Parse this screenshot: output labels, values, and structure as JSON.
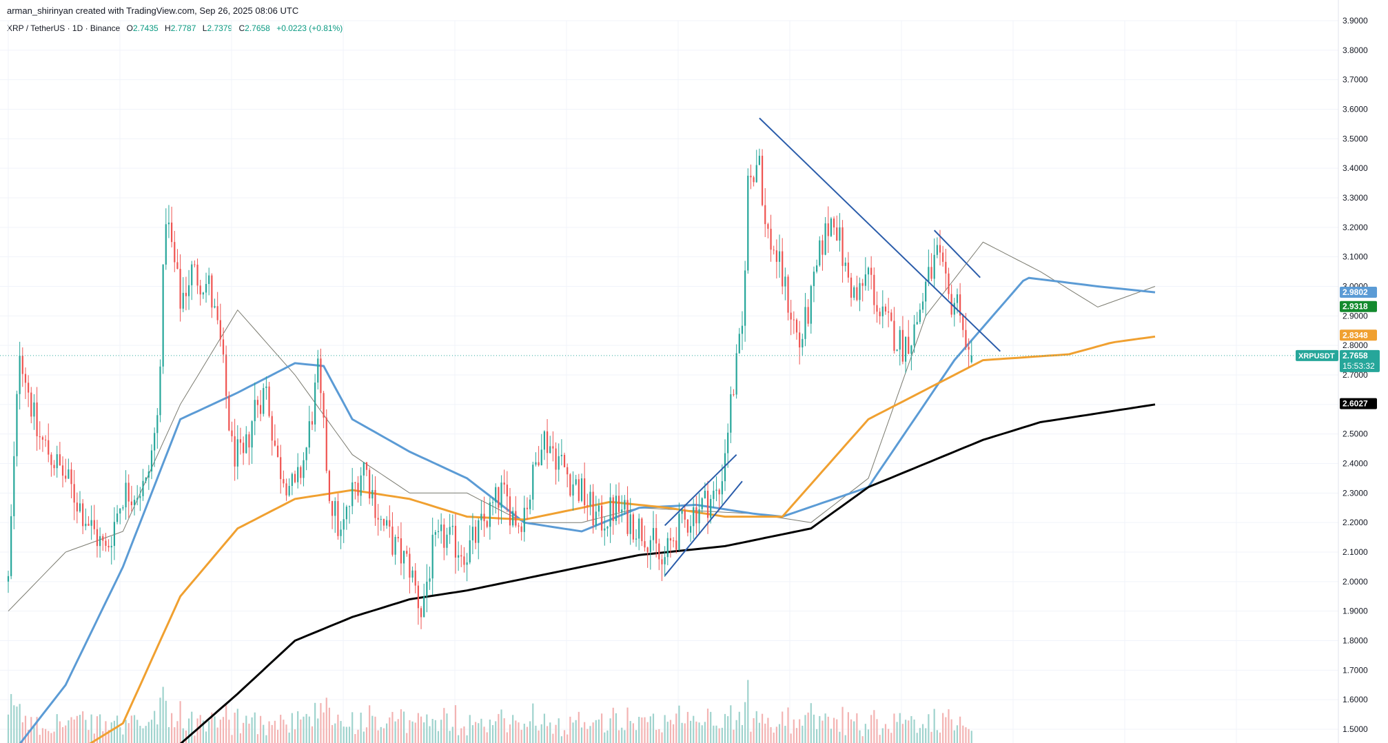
{
  "header": {
    "credit": "arman_shirinyan created with TradingView.com, Sep 26, 2025 08:06 UTC",
    "symbol": "XRP / TetherUS · 1D · Binance",
    "open_label": "O",
    "open": "2.7435",
    "high_label": "H",
    "high": "2.7787",
    "low_label": "L",
    "low": "2.7379",
    "close_label": "C",
    "close": "2.7658",
    "change": "+0.0223 (+0.81%)"
  },
  "colors": {
    "up": "#26a69a",
    "down": "#ef5350",
    "up_volume": "#9fd3cd",
    "down_volume": "#f3b3b2",
    "ma_20": "#7a7a6f",
    "ma_50": "#5b9bd5",
    "ma_100": "#f0a030",
    "ma_200": "#000000",
    "trendline": "#2a5caa",
    "grid": "#f0f3fa",
    "axis_text": "#131722"
  },
  "chart_data": {
    "type": "candlestick",
    "symbol": "XRPUSDT",
    "timeframe": "1D",
    "exchange": "Binance",
    "ylim": [
      1.45,
      3.9
    ],
    "y_ticks": [
      "3.9000",
      "3.8000",
      "3.7000",
      "3.6000",
      "3.5000",
      "3.4000",
      "3.3000",
      "3.2000",
      "3.1000",
      "3.0000",
      "2.9000",
      "2.8000",
      "2.7000",
      "2.6000",
      "2.5000",
      "2.4000",
      "2.3000",
      "2.2000",
      "2.1000",
      "2.0000",
      "1.9000",
      "1.8000",
      "1.7000",
      "1.6000",
      "1.5000"
    ],
    "grid": true,
    "ma_anchors": {
      "ma_20": [
        [
          0,
          1.9
        ],
        [
          20,
          2.1
        ],
        [
          40,
          2.17
        ],
        [
          60,
          2.6
        ],
        [
          80,
          2.92
        ],
        [
          100,
          2.7
        ],
        [
          120,
          2.43
        ],
        [
          140,
          2.3
        ],
        [
          160,
          2.3
        ],
        [
          180,
          2.2
        ],
        [
          200,
          2.2
        ],
        [
          220,
          2.25
        ],
        [
          240,
          2.24
        ],
        [
          260,
          2.23
        ],
        [
          280,
          2.2
        ],
        [
          300,
          2.35
        ],
        [
          320,
          2.9
        ],
        [
          340,
          3.15
        ],
        [
          360,
          3.05
        ],
        [
          380,
          2.93
        ],
        [
          400,
          3.0
        ]
      ],
      "ma_50": [
        [
          0,
          1.4
        ],
        [
          20,
          1.65
        ],
        [
          40,
          2.05
        ],
        [
          60,
          2.55
        ],
        [
          80,
          2.64
        ],
        [
          100,
          2.74
        ],
        [
          110,
          2.73
        ],
        [
          120,
          2.55
        ],
        [
          140,
          2.44
        ],
        [
          160,
          2.35
        ],
        [
          180,
          2.2
        ],
        [
          200,
          2.17
        ],
        [
          220,
          2.25
        ],
        [
          240,
          2.26
        ],
        [
          260,
          2.23
        ],
        [
          270,
          2.22
        ],
        [
          300,
          2.32
        ],
        [
          330,
          2.75
        ],
        [
          355,
          3.03
        ],
        [
          380,
          3.0
        ],
        [
          400,
          2.98
        ]
      ],
      "ma_100": [
        [
          20,
          1.4
        ],
        [
          40,
          1.52
        ],
        [
          60,
          1.95
        ],
        [
          80,
          2.18
        ],
        [
          100,
          2.28
        ],
        [
          120,
          2.31
        ],
        [
          140,
          2.28
        ],
        [
          160,
          2.22
        ],
        [
          180,
          2.21
        ],
        [
          200,
          2.25
        ],
        [
          210,
          2.27
        ],
        [
          230,
          2.25
        ],
        [
          250,
          2.22
        ],
        [
          270,
          2.22
        ],
        [
          300,
          2.55
        ],
        [
          340,
          2.75
        ],
        [
          370,
          2.77
        ],
        [
          385,
          2.81
        ],
        [
          400,
          2.83
        ]
      ],
      "ma_200": [
        [
          60,
          1.45
        ],
        [
          80,
          1.62
        ],
        [
          100,
          1.8
        ],
        [
          120,
          1.88
        ],
        [
          140,
          1.94
        ],
        [
          160,
          1.97
        ],
        [
          180,
          2.01
        ],
        [
          200,
          2.05
        ],
        [
          220,
          2.09
        ],
        [
          250,
          2.12
        ],
        [
          280,
          2.18
        ],
        [
          300,
          2.32
        ],
        [
          320,
          2.4
        ],
        [
          340,
          2.48
        ],
        [
          360,
          2.54
        ],
        [
          380,
          2.57
        ],
        [
          400,
          2.6
        ]
      ]
    },
    "trendlines": [
      {
        "name": "descending-upper",
        "from": [
          262,
          3.57
        ],
        "to": [
          346,
          2.78
        ]
      },
      {
        "name": "descending-short",
        "from": [
          323,
          3.19
        ],
        "to": [
          339,
          3.03
        ]
      },
      {
        "name": "rising-channel-upper",
        "from": [
          229,
          2.19
        ],
        "to": [
          254,
          2.43
        ]
      },
      {
        "name": "rising-channel-lower",
        "from": [
          229,
          2.02
        ],
        "to": [
          256,
          2.34
        ]
      }
    ],
    "last_price": "2.7658",
    "countdown": "15:53:32",
    "price_labels": [
      {
        "value": "2.9802",
        "price": 2.9802,
        "color": "#5b9bd5"
      },
      {
        "value": "2.9318",
        "price": 2.9318,
        "color": "#138a2e"
      },
      {
        "value": "2.8348",
        "price": 2.8348,
        "color": "#f0a030"
      },
      {
        "value": "2.6027",
        "price": 2.6027,
        "color": "#000000"
      }
    ],
    "last_price_label": {
      "symbol": "XRPUSDT",
      "value": "2.7658",
      "countdown": "15:53:32",
      "price": 2.7658,
      "color": "#26a69a"
    }
  }
}
